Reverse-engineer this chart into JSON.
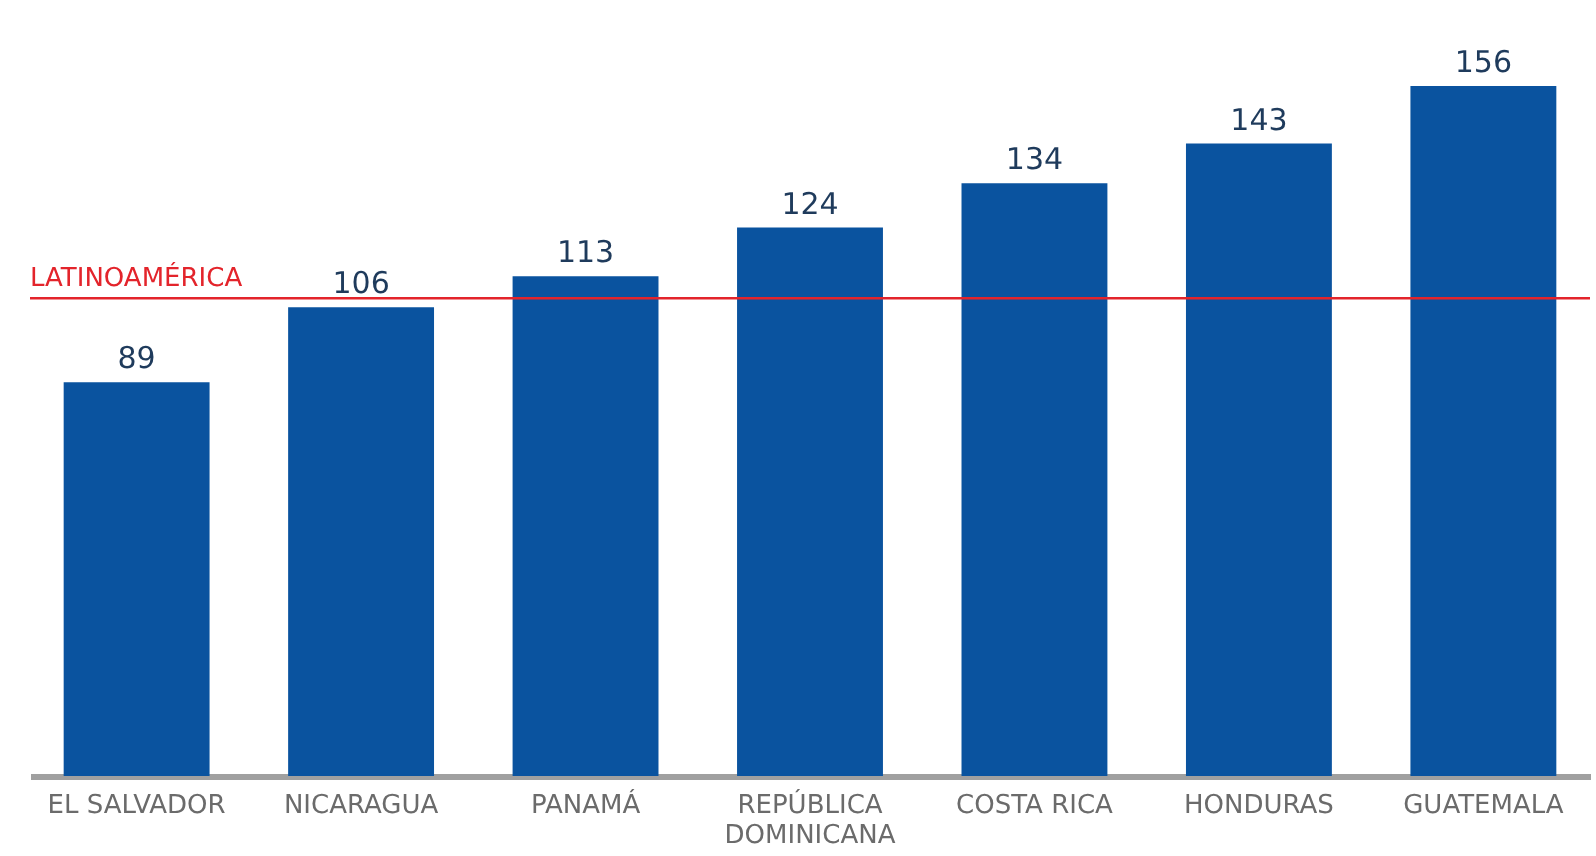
{
  "chart_data": {
    "type": "bar",
    "categories": [
      "EL SALVADOR",
      "NICARAGUA",
      "PANAMÁ",
      "REPÚBLICA DOMINICANA",
      "COSTA RICA",
      "HONDURAS",
      "GUATEMALA"
    ],
    "values": [
      89,
      106,
      113,
      124,
      134,
      143,
      156
    ],
    "color": "#0a539f",
    "data_labels": true,
    "grid": false,
    "ref_lines": [
      {
        "axis": "y",
        "value": 108,
        "label": "LATINOAMÉRICA",
        "color": "#e3242b"
      }
    ]
  }
}
